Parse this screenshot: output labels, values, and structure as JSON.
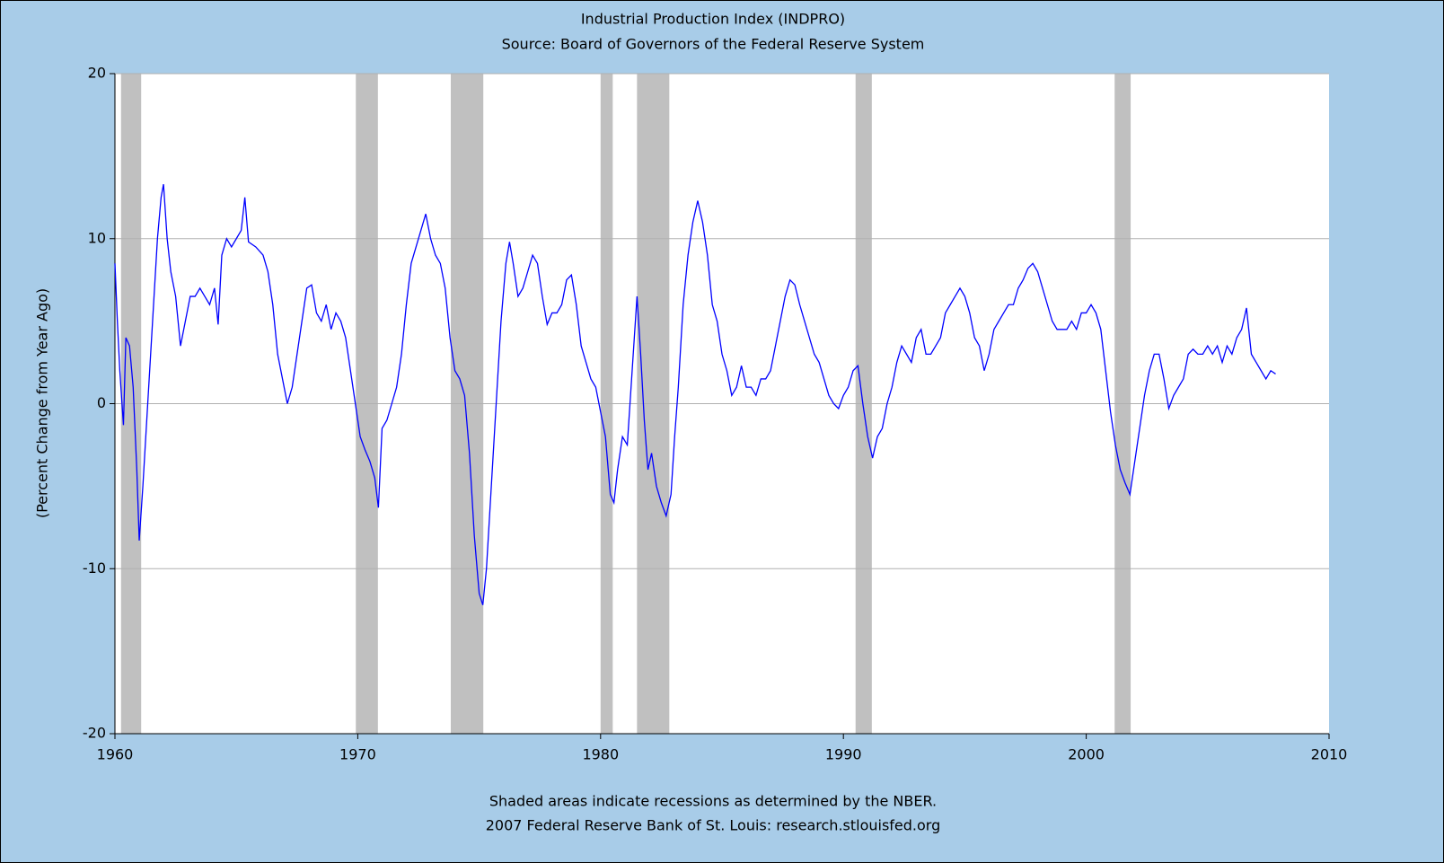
{
  "chart_data": {
    "type": "line",
    "title": "Industrial Production Index (INDPRO)",
    "subtitle": "Source: Board of Governors of the Federal Reserve System",
    "ylabel": "(Percent Change from Year Ago)",
    "footnotes": [
      "Shaded areas indicate recessions as determined by the NBER.",
      "2007 Federal Reserve Bank of St. Louis: research.stlouisfed.org"
    ],
    "color": "#0000ff",
    "recession_color": "#c0c0c0",
    "grid": true,
    "xlim": [
      1960,
      2010
    ],
    "xticks": [
      1960,
      1970,
      1980,
      1990,
      2000,
      2010
    ],
    "ylim": [
      -20,
      20
    ],
    "yticks": [
      -20,
      -10,
      0,
      10,
      20
    ],
    "recessions": [
      [
        1960.25,
        1961.08
      ],
      [
        1969.92,
        1970.83
      ],
      [
        1973.83,
        1975.17
      ],
      [
        1980.0,
        1980.5
      ],
      [
        1981.5,
        1982.83
      ],
      [
        1990.5,
        1991.17
      ],
      [
        2001.17,
        2001.83
      ]
    ],
    "x": [
      1960.0,
      1960.1,
      1960.2,
      1960.35,
      1960.45,
      1960.6,
      1960.75,
      1960.9,
      1961.0,
      1961.15,
      1961.35,
      1961.55,
      1961.75,
      1961.9,
      1962.0,
      1962.15,
      1962.3,
      1962.5,
      1962.7,
      1962.9,
      1963.1,
      1963.3,
      1963.5,
      1963.7,
      1963.9,
      1964.1,
      1964.25,
      1964.4,
      1964.6,
      1964.8,
      1965.0,
      1965.2,
      1965.35,
      1965.5,
      1965.8,
      1966.1,
      1966.3,
      1966.5,
      1966.7,
      1966.9,
      1967.1,
      1967.3,
      1967.5,
      1967.7,
      1967.9,
      1968.1,
      1968.3,
      1968.5,
      1968.7,
      1968.9,
      1969.1,
      1969.3,
      1969.5,
      1969.7,
      1969.9,
      1970.1,
      1970.3,
      1970.5,
      1970.7,
      1970.85,
      1971.0,
      1971.2,
      1971.4,
      1971.6,
      1971.8,
      1972.0,
      1972.2,
      1972.4,
      1972.6,
      1972.8,
      1973.0,
      1973.2,
      1973.4,
      1973.6,
      1973.8,
      1974.0,
      1974.2,
      1974.4,
      1974.6,
      1974.8,
      1975.0,
      1975.15,
      1975.3,
      1975.5,
      1975.7,
      1975.9,
      1976.1,
      1976.25,
      1976.4,
      1976.6,
      1976.8,
      1977.0,
      1977.2,
      1977.4,
      1977.6,
      1977.8,
      1978.0,
      1978.2,
      1978.4,
      1978.6,
      1978.8,
      1979.0,
      1979.2,
      1979.4,
      1979.6,
      1979.8,
      1980.0,
      1980.2,
      1980.4,
      1980.55,
      1980.7,
      1980.9,
      1981.1,
      1981.3,
      1981.5,
      1981.65,
      1981.8,
      1981.95,
      1982.1,
      1982.3,
      1982.5,
      1982.7,
      1982.9,
      1983.05,
      1983.2,
      1983.4,
      1983.6,
      1983.8,
      1984.0,
      1984.2,
      1984.4,
      1984.6,
      1984.8,
      1985.0,
      1985.2,
      1985.4,
      1985.6,
      1985.8,
      1986.0,
      1986.2,
      1986.4,
      1986.6,
      1986.8,
      1987.0,
      1987.2,
      1987.4,
      1987.6,
      1987.8,
      1988.0,
      1988.2,
      1988.4,
      1988.6,
      1988.8,
      1989.0,
      1989.2,
      1989.4,
      1989.6,
      1989.8,
      1990.0,
      1990.2,
      1990.4,
      1990.6,
      1990.8,
      1991.0,
      1991.2,
      1991.4,
      1991.6,
      1991.8,
      1992.0,
      1992.2,
      1992.4,
      1992.6,
      1992.8,
      1993.0,
      1993.2,
      1993.4,
      1993.6,
      1993.8,
      1994.0,
      1994.2,
      1994.4,
      1994.6,
      1994.8,
      1995.0,
      1995.2,
      1995.4,
      1995.6,
      1995.8,
      1996.0,
      1996.2,
      1996.4,
      1996.6,
      1996.8,
      1997.0,
      1997.2,
      1997.4,
      1997.6,
      1997.8,
      1998.0,
      1998.2,
      1998.4,
      1998.6,
      1998.8,
      1999.0,
      1999.2,
      1999.4,
      1999.6,
      1999.8,
      2000.0,
      2000.2,
      2000.4,
      2000.6,
      2000.8,
      2001.0,
      2001.2,
      2001.4,
      2001.6,
      2001.8,
      2002.0,
      2002.2,
      2002.4,
      2002.6,
      2002.8,
      2003.0,
      2003.2,
      2003.4,
      2003.6,
      2003.8,
      2004.0,
      2004.2,
      2004.4,
      2004.6,
      2004.8,
      2005.0,
      2005.2,
      2005.4,
      2005.6,
      2005.8,
      2006.0,
      2006.2,
      2006.4,
      2006.6,
      2006.8,
      2007.0,
      2007.2,
      2007.4,
      2007.6,
      2007.8
    ],
    "values": [
      8.5,
      5,
      2,
      -1.3,
      4,
      3.5,
      1,
      -4,
      -8.3,
      -5,
      0,
      5,
      10,
      12.5,
      13.3,
      10,
      8,
      6.5,
      3.5,
      5,
      6.5,
      6.5,
      7,
      6.5,
      6,
      7,
      4.8,
      9,
      10,
      9.5,
      10,
      10.5,
      12.5,
      9.8,
      9.5,
      9,
      8,
      6,
      3,
      1.5,
      0,
      1,
      3,
      5,
      7,
      7.2,
      5.5,
      5,
      6,
      4.5,
      5.5,
      5,
      4,
      2,
      0,
      -2,
      -2.8,
      -3.5,
      -4.5,
      -6.3,
      -1.5,
      -1,
      0,
      1,
      3,
      6,
      8.5,
      9.5,
      10.5,
      11.5,
      10,
      9,
      8.5,
      7,
      4,
      2,
      1.5,
      0.5,
      -3,
      -8,
      -11.5,
      -12.2,
      -10,
      -5,
      0,
      5,
      8.5,
      9.8,
      8.5,
      6.5,
      7,
      8,
      9,
      8.5,
      6.5,
      4.8,
      5.5,
      5.5,
      6,
      7.5,
      7.8,
      6,
      3.5,
      2.5,
      1.5,
      1,
      -0.5,
      -2,
      -5.5,
      -6,
      -4,
      -2,
      -2.5,
      2,
      6.5,
      3,
      -1,
      -4,
      -3,
      -5,
      -6,
      -6.8,
      -5.5,
      -2,
      1,
      6,
      9,
      11,
      12.3,
      11,
      9,
      6,
      5,
      3,
      2,
      0.5,
      1,
      2.3,
      1,
      1,
      0.5,
      1.5,
      1.5,
      2,
      3.5,
      5,
      6.5,
      7.5,
      7.2,
      6,
      5,
      4,
      3,
      2.5,
      1.5,
      0.5,
      0,
      -0.3,
      0.5,
      1,
      2,
      2.3,
      0,
      -2,
      -3.3,
      -2,
      -1.5,
      0,
      1,
      2.5,
      3.5,
      3,
      2.5,
      4,
      4.5,
      3,
      3,
      3.5,
      4,
      5.5,
      6,
      6.5,
      7,
      6.5,
      5.5,
      4,
      3.5,
      2,
      3,
      4.5,
      5,
      5.5,
      6,
      6,
      7,
      7.5,
      8.2,
      8.5,
      8,
      7,
      6,
      5,
      4.5,
      4.5,
      4.5,
      5,
      4.5,
      5.5,
      5.5,
      6,
      5.5,
      4.5,
      2,
      -0.5,
      -2.5,
      -4,
      -4.8,
      -5.5,
      -3.5,
      -1.5,
      0.5,
      2,
      3,
      3,
      1.5,
      -0.3,
      0.5,
      1,
      1.5,
      3,
      3.3,
      3,
      3,
      3.5,
      3,
      3.5,
      2.5,
      3.5,
      3,
      4,
      4.5,
      5.8,
      3,
      2.5,
      2,
      1.5,
      2,
      1.8
    ]
  }
}
